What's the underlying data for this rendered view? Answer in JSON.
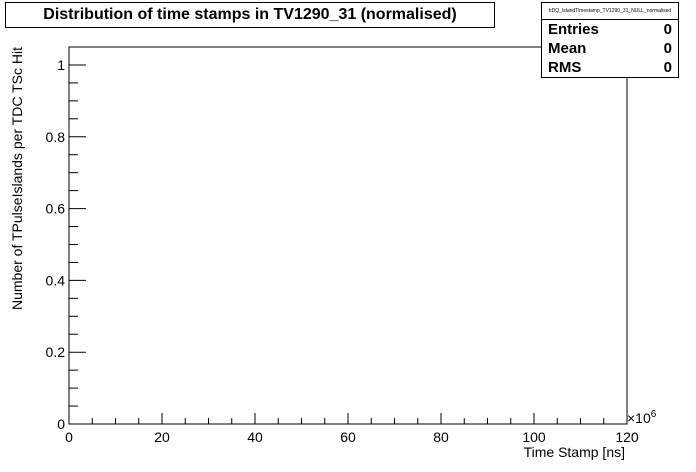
{
  "title": "Distribution of time stamps in TV1290_31 (normalised)",
  "stats": {
    "name": "hDQ_IslandTimestamp_TV1290_31_NULL_normalised",
    "rows": [
      {
        "label": "Entries",
        "value": "0"
      },
      {
        "label": "Mean",
        "value": "0"
      },
      {
        "label": "RMS",
        "value": "0"
      }
    ]
  },
  "chart_data": {
    "type": "bar",
    "title": "Distribution of time stamps in TV1290_31 (normalised)",
    "xlabel": "Time Stamp [ns]",
    "ylabel": "Number of TPulseIslands per TDC TSc Hit",
    "x_exponent_label": "×10",
    "x_exponent_power": "6",
    "xlim": [
      0,
      120
    ],
    "ylim": [
      0,
      1.05
    ],
    "x_ticks": [
      {
        "value": 0,
        "label": "0"
      },
      {
        "value": 20,
        "label": "20"
      },
      {
        "value": 40,
        "label": "40"
      },
      {
        "value": 60,
        "label": "60"
      },
      {
        "value": 80,
        "label": "80"
      },
      {
        "value": 100,
        "label": "100"
      },
      {
        "value": 120,
        "label": "120"
      }
    ],
    "y_ticks": [
      {
        "value": 0,
        "label": "0"
      },
      {
        "value": 0.2,
        "label": "0.2"
      },
      {
        "value": 0.4,
        "label": "0.4"
      },
      {
        "value": 0.6,
        "label": "0.6"
      },
      {
        "value": 0.8,
        "label": "0.8"
      },
      {
        "value": 1,
        "label": "1"
      }
    ],
    "x_minor_step": 5,
    "y_minor_step": 0.05,
    "values": [],
    "grid": false
  }
}
